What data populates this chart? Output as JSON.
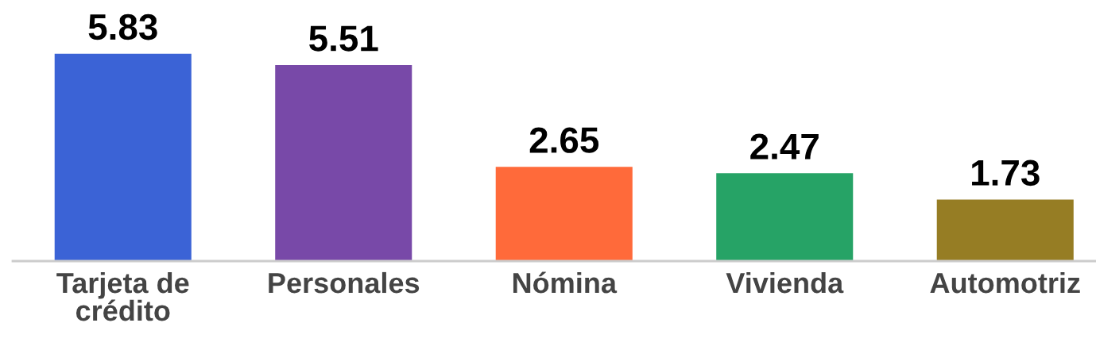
{
  "chart_data": {
    "type": "bar",
    "categories": [
      "Tarjeta de\ncrédito",
      "Personales",
      "Nómina",
      "Vivienda",
      "Automotriz"
    ],
    "values": [
      5.83,
      5.51,
      2.65,
      2.47,
      1.73
    ],
    "colors": [
      "#3b63d6",
      "#7849a8",
      "#ff6a3a",
      "#26a366",
      "#967d24"
    ],
    "data_labels": true,
    "grid": false,
    "legend": false
  }
}
